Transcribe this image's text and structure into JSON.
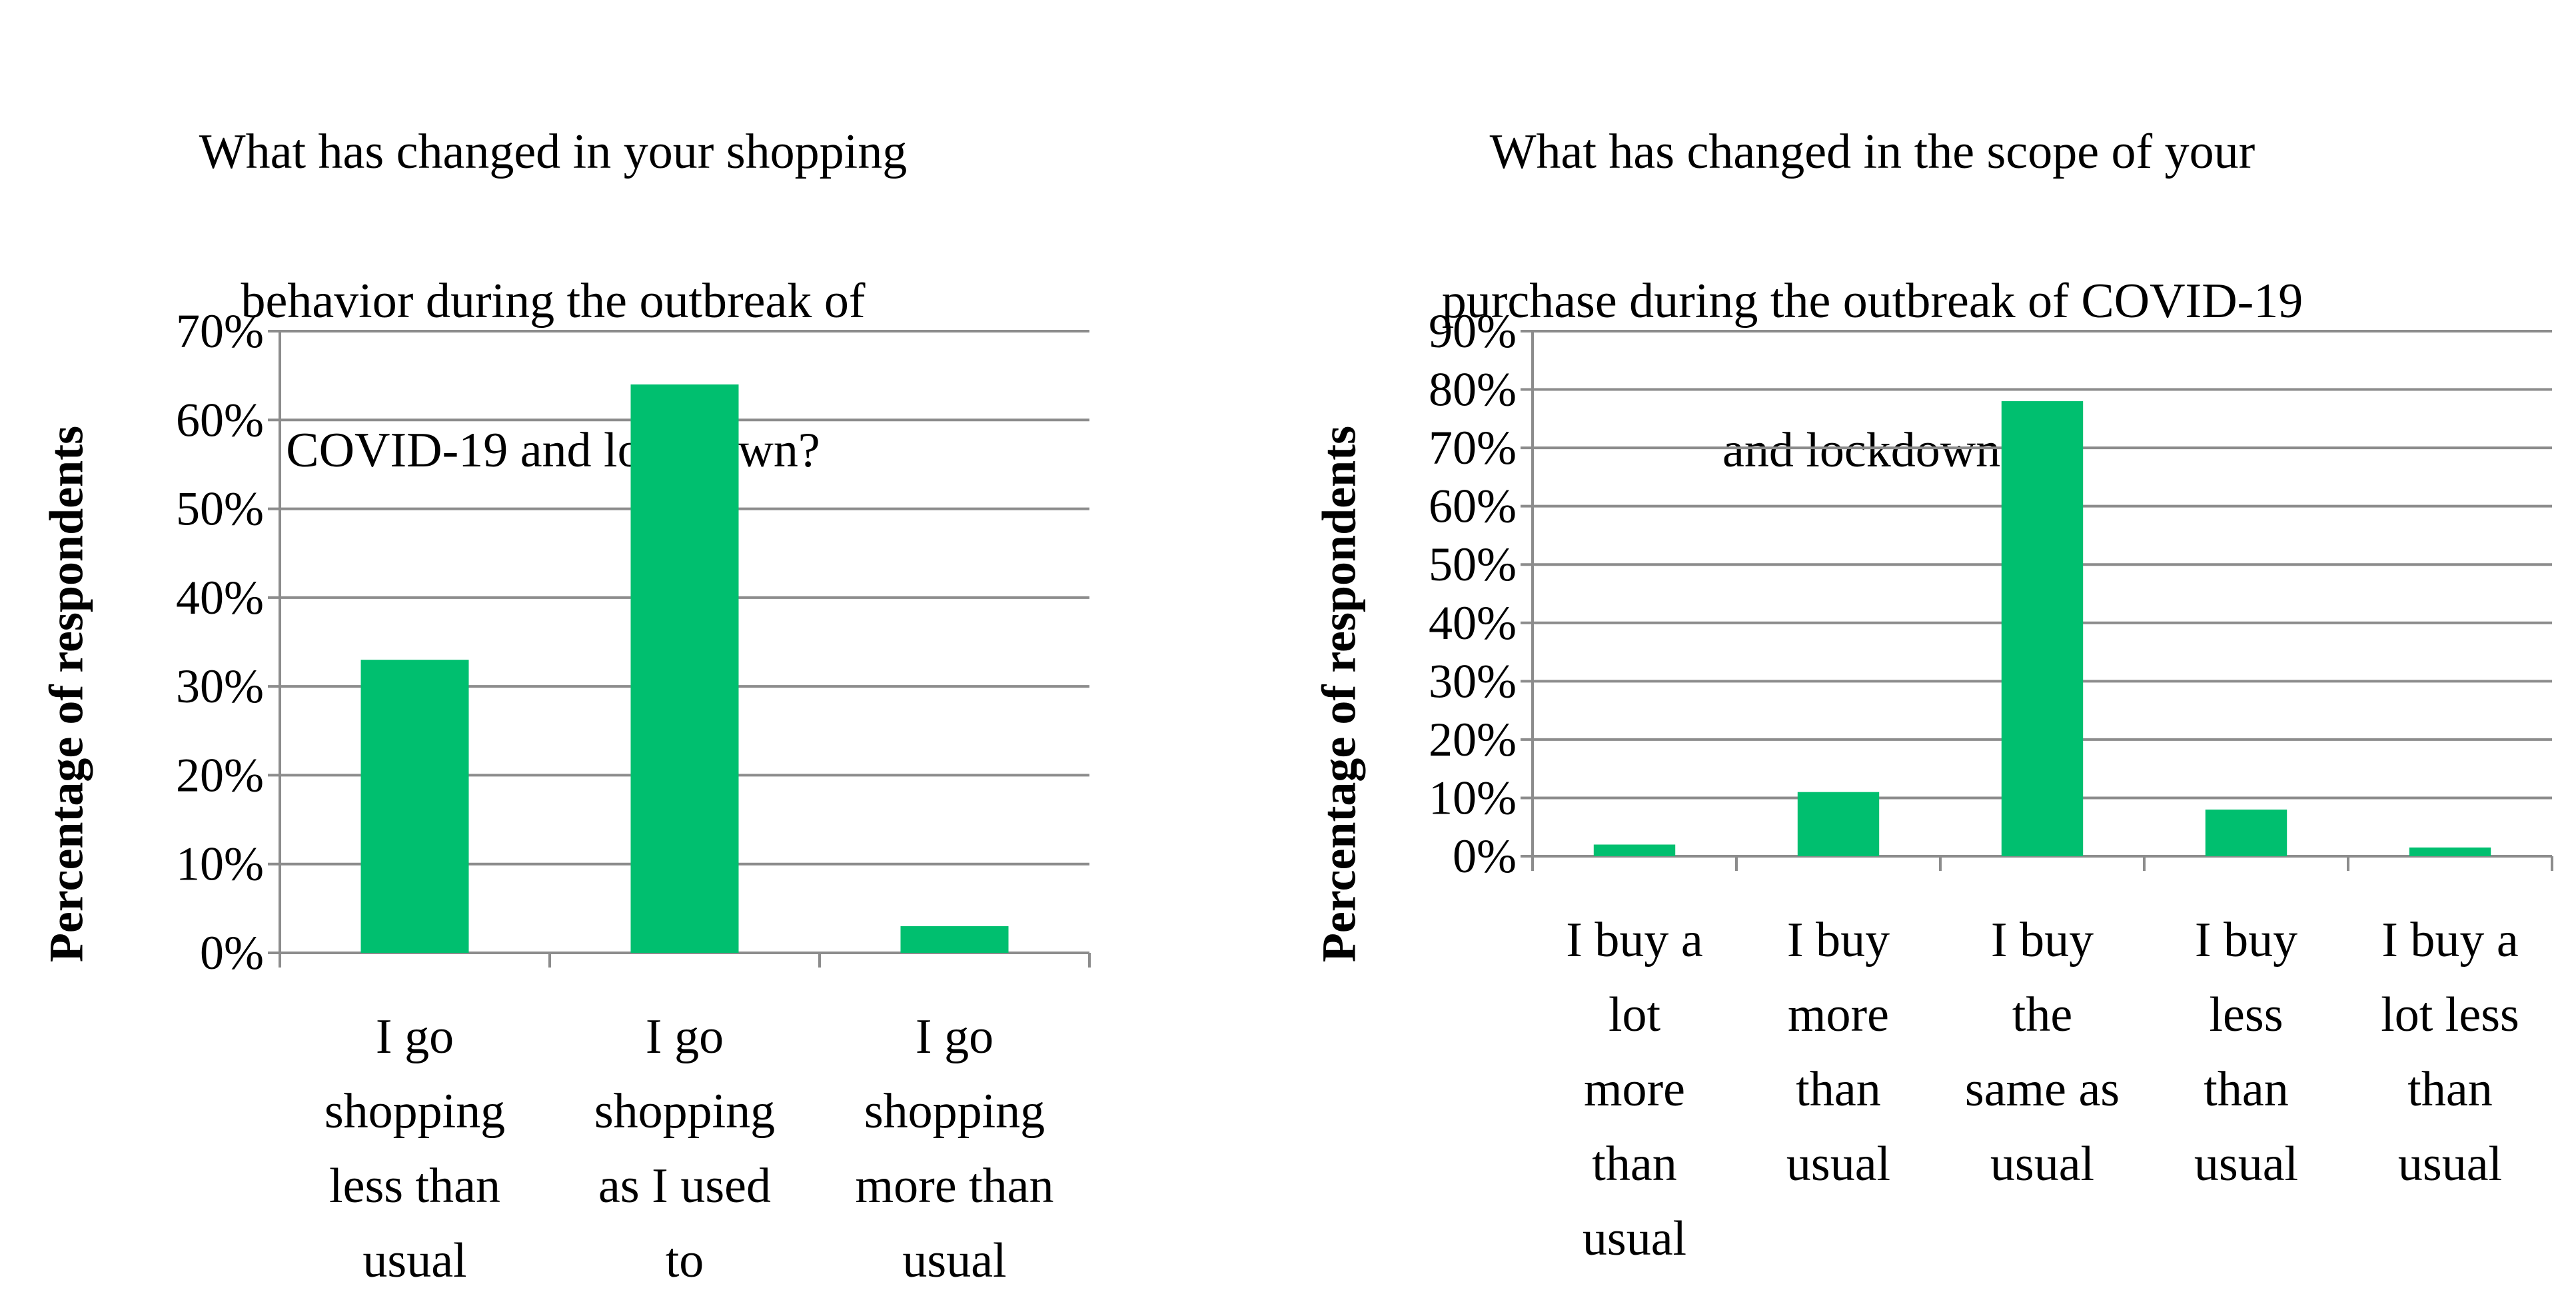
{
  "chart_data": [
    {
      "type": "bar",
      "title": "What has changed in your shopping behavior during the outbreak of COVID-19 and lockdown?",
      "title_lines": [
        "What has changed in your shopping",
        "behavior during the outbreak of",
        "COVID-19 and lockdown?"
      ],
      "ylabel": "Percentage of respondents",
      "xlabel": "",
      "categories": [
        "I go shopping less than usual",
        "I go shopping as I used to",
        "I go shopping more than usual"
      ],
      "category_lines": [
        [
          "I go",
          "shopping",
          "less than",
          "usual"
        ],
        [
          "I go",
          "shopping",
          "as I used",
          "to"
        ],
        [
          "I go",
          "shopping",
          "more than",
          "usual"
        ]
      ],
      "values": [
        33,
        64,
        3
      ],
      "ylim": [
        0,
        70
      ],
      "yticks": [
        "0%",
        "10%",
        "20%",
        "30%",
        "40%",
        "50%",
        "60%",
        "70%"
      ],
      "grid": true,
      "bar_color": "#00BF6F"
    },
    {
      "type": "bar",
      "title": "What has changed in the scope of your purchase during the outbreak of COVID-19 and lockdown?",
      "title_lines": [
        "What has changed in the scope of your",
        "purchase during the outbreak of COVID-19",
        "and lockdown?"
      ],
      "ylabel": "Percentage of respondents",
      "xlabel": "",
      "categories": [
        "I buy a lot more than usual",
        "I buy more than usual",
        "I buy the same as usual",
        "I buy less than usual",
        "I buy a lot less than usual"
      ],
      "category_lines": [
        [
          "I buy a",
          "lot",
          "more",
          "than",
          "usual"
        ],
        [
          "I buy",
          "more",
          "than",
          "usual"
        ],
        [
          "I buy",
          "the",
          "same as",
          "usual"
        ],
        [
          "I buy",
          "less",
          "than",
          "usual"
        ],
        [
          "I buy a",
          "lot less",
          "than",
          "usual"
        ]
      ],
      "values": [
        2,
        11,
        78,
        8,
        1.5
      ],
      "ylim": [
        0,
        90
      ],
      "yticks": [
        "0%",
        "10%",
        "20%",
        "30%",
        "40%",
        "50%",
        "60%",
        "70%",
        "80%",
        "90%"
      ],
      "grid": true,
      "bar_color": "#00BF6F"
    }
  ]
}
